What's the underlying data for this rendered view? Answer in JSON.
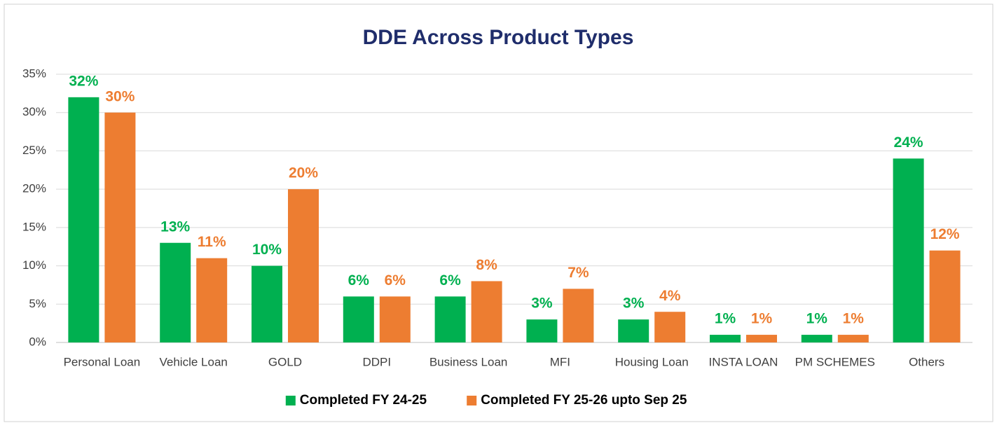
{
  "chart_data": {
    "type": "bar",
    "title": "DDE Across Product Types",
    "categories": [
      "Personal Loan",
      "Vehicle Loan",
      "GOLD",
      "DDPI",
      "Business Loan",
      "MFI",
      "Housing Loan",
      "INSTA LOAN",
      "PM SCHEMES",
      "Others"
    ],
    "series": [
      {
        "name": "Completed FY 24-25",
        "color": "#00b050",
        "values": [
          32,
          13,
          10,
          6,
          6,
          3,
          3,
          1,
          1,
          24
        ],
        "value_labels": [
          "32%",
          "13%",
          "10%",
          "6%",
          "6%",
          "3%",
          "3%",
          "1%",
          "1%",
          "24%"
        ]
      },
      {
        "name": "Completed FY 25-26 upto Sep 25",
        "color": "#ed7d31",
        "values": [
          30,
          11,
          20,
          6,
          8,
          7,
          4,
          1,
          1,
          12
        ],
        "value_labels": [
          "30%",
          "11%",
          "20%",
          "6%",
          "8%",
          "7%",
          "4%",
          "1%",
          "1%",
          "12%"
        ]
      }
    ],
    "ylim": [
      0,
      35
    ],
    "yticks": [
      {
        "value": 0,
        "label": "0%"
      },
      {
        "value": 5,
        "label": "5%"
      },
      {
        "value": 10,
        "label": "10%"
      },
      {
        "value": 15,
        "label": "15%"
      },
      {
        "value": 20,
        "label": "20%"
      },
      {
        "value": 25,
        "label": "25%"
      },
      {
        "value": 30,
        "label": "30%"
      },
      {
        "value": 35,
        "label": "35%"
      }
    ],
    "grid": true,
    "legend": "bottom"
  }
}
